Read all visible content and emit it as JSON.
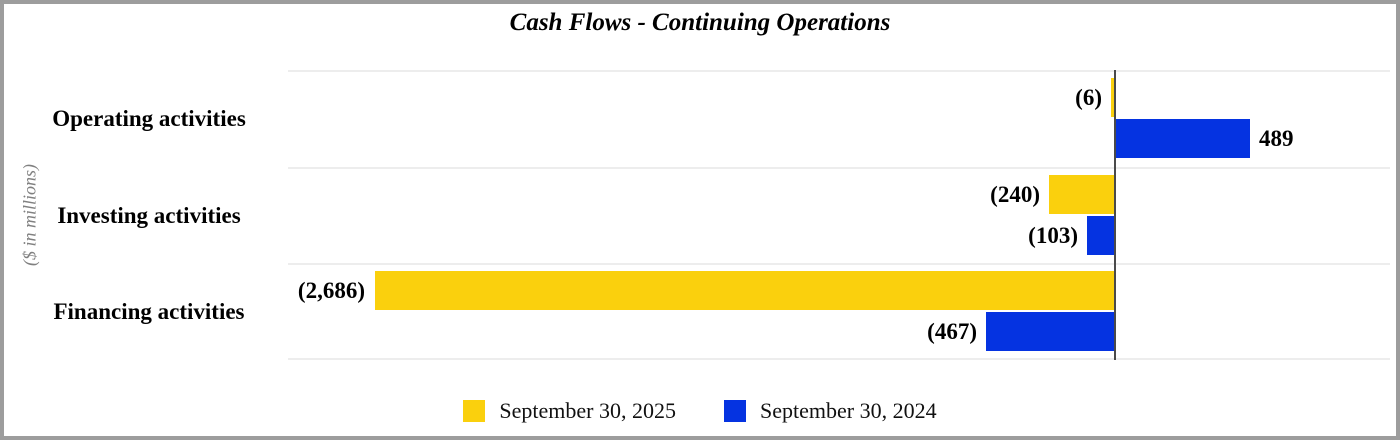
{
  "window": {
    "border_color": "#9d9d9d",
    "background": "#ffffff"
  },
  "chart_data": {
    "type": "bar",
    "orientation": "horizontal",
    "title": "Cash Flows - Continuing Operations",
    "ylabel": "($ in millions)",
    "xlabel": "",
    "categories": [
      "Operating activities",
      "Investing activities",
      "Financing activities"
    ],
    "series": [
      {
        "name": "September 30, 2025",
        "color": "#FAD00D",
        "values": [
          -6,
          -240,
          -2686
        ],
        "labels": [
          "(6)",
          "(240)",
          "(2,686)"
        ]
      },
      {
        "name": "September 30, 2024",
        "color": "#0533E1",
        "values": [
          489,
          -103,
          -467
        ],
        "labels": [
          "489",
          "(103)",
          "(467)"
        ]
      }
    ],
    "xlim": [
      -3000,
      1000
    ],
    "grid": "horizontal",
    "gridline_color": "#ededed",
    "zero_axis_color": "#4a4a4a",
    "legend_position": "bottom"
  }
}
